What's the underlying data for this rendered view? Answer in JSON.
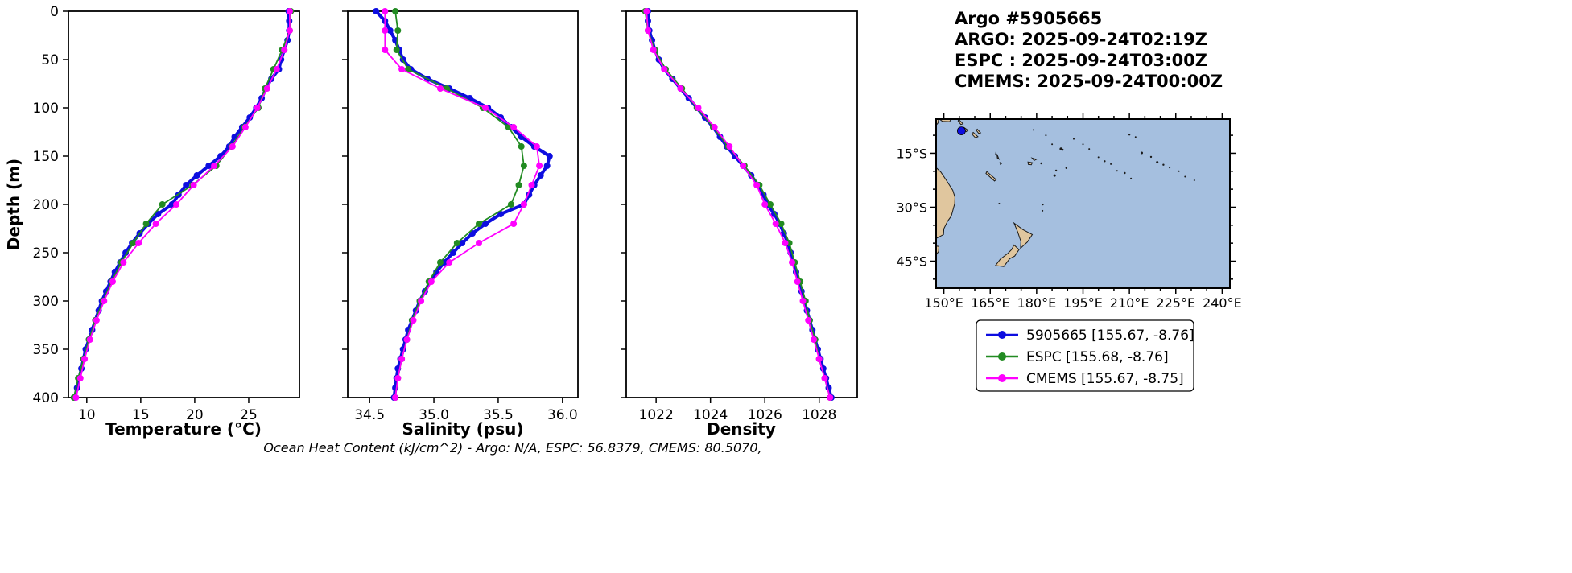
{
  "header": {
    "lines": [
      "Argo #5905665",
      "ARGO: 2025-09-24T02:19Z",
      "ESPC : 2025-09-24T03:00Z",
      "CMEMS: 2025-09-24T00:00Z"
    ]
  },
  "caption": "Ocean Heat Content (kJ/cm^2) - Argo: N/A,  ESPC: 56.8379,  CMEMS: 80.5070,",
  "colors": {
    "argo": "#0d0de0",
    "espc": "#228b22",
    "cmems": "#ff00ff",
    "ocean": "#a5bfdf",
    "land": "#e0c69e",
    "coast": "#1a1a1a"
  },
  "legend": {
    "entries": [
      {
        "label": "5905665 [155.67, -8.76]",
        "color_key": "argo"
      },
      {
        "label": "ESPC [155.68, -8.76]",
        "color_key": "espc"
      },
      {
        "label": "CMEMS [155.67, -8.75]",
        "color_key": "cmems"
      }
    ]
  },
  "map": {
    "extent": {
      "lon_min": 147.5,
      "lon_max": 242.5,
      "lat_min": -52.5,
      "lat_max": -5.5
    },
    "lon_tick_values": [
      150,
      165,
      180,
      195,
      210,
      225,
      240
    ],
    "lon_tick_labels": [
      "150°E",
      "165°E",
      "180°E",
      "195°E",
      "210°E",
      "225°E",
      "240°E"
    ],
    "lat_tick_values": [
      -15,
      -30,
      -45
    ],
    "lat_tick_labels": [
      "15°S",
      "30°S",
      "45°S"
    ],
    "marker": {
      "lon": 155.67,
      "lat": -8.76
    }
  },
  "depth_axis": {
    "label": "Depth (m)",
    "lim": [
      0,
      400
    ],
    "tick_values": [
      0,
      50,
      100,
      150,
      200,
      250,
      300,
      350,
      400
    ],
    "tick_labels": [
      "0",
      "50",
      "100",
      "150",
      "200",
      "250",
      "300",
      "350",
      "400"
    ]
  },
  "depth_grids": {
    "fine": [
      0,
      10,
      20,
      30,
      40,
      50,
      60,
      70,
      80,
      90,
      100,
      110,
      120,
      130,
      140,
      150,
      160,
      170,
      180,
      190,
      200,
      210,
      220,
      230,
      240,
      250,
      260,
      270,
      280,
      290,
      300,
      310,
      320,
      330,
      340,
      350,
      360,
      370,
      380,
      390,
      400
    ],
    "coarse": [
      0,
      20,
      40,
      60,
      80,
      100,
      120,
      140,
      160,
      180,
      200,
      220,
      240,
      260,
      280,
      300,
      320,
      340,
      360,
      380,
      400
    ]
  },
  "chart_data": [
    {
      "id": "temperature",
      "type": "line",
      "xlabel": "Temperature (°C)",
      "ylabel": "Depth (m)",
      "xlim": [
        8.3,
        29.7
      ],
      "ylim": [
        0,
        400
      ],
      "xtick_values": [
        10,
        15,
        20,
        25
      ],
      "xtick_labels": [
        "10",
        "15",
        "20",
        "25"
      ],
      "series": [
        {
          "name": "5905665",
          "color_key": "argo",
          "depth_grid": "fine",
          "line_width": 4,
          "marker_radius": 4,
          "values": [
            28.7,
            28.75,
            28.75,
            28.6,
            28.3,
            28.0,
            27.8,
            27.1,
            26.6,
            26.2,
            25.7,
            25.1,
            24.4,
            23.7,
            23.2,
            22.4,
            21.3,
            20.2,
            19.2,
            18.5,
            17.9,
            16.6,
            15.7,
            14.9,
            14.2,
            13.6,
            13.1,
            12.6,
            12.2,
            11.8,
            11.4,
            11.1,
            10.8,
            10.5,
            10.2,
            9.9,
            9.7,
            9.5,
            9.3,
            9.1,
            8.9
          ]
        },
        {
          "name": "ESPC",
          "color_key": "espc",
          "depth_grid": "coarse",
          "line_width": 1.8,
          "marker_radius": 4,
          "values": [
            28.9,
            28.8,
            28.1,
            27.3,
            26.5,
            25.9,
            24.6,
            23.4,
            22.0,
            19.8,
            17.0,
            15.5,
            14.3,
            13.2,
            12.3,
            11.5,
            10.8,
            10.2,
            9.7,
            9.2,
            8.8
          ]
        },
        {
          "name": "CMEMS",
          "color_key": "cmems",
          "depth_grid": "coarse",
          "line_width": 1.8,
          "marker_radius": 4,
          "values": [
            28.8,
            28.8,
            28.3,
            27.6,
            26.7,
            25.8,
            24.7,
            23.5,
            21.8,
            19.9,
            18.3,
            16.4,
            14.8,
            13.4,
            12.4,
            11.6,
            10.9,
            10.3,
            9.8,
            9.4,
            9.0
          ]
        }
      ]
    },
    {
      "id": "salinity",
      "type": "line",
      "xlabel": "Salinity (psu)",
      "ylabel": "Depth (m)",
      "xlim": [
        34.33,
        36.12
      ],
      "ylim": [
        0,
        400
      ],
      "xtick_values": [
        34.5,
        35.0,
        35.5,
        36.0
      ],
      "xtick_labels": [
        "34.5",
        "35.0",
        "35.5",
        "36.0"
      ],
      "series": [
        {
          "name": "5905665",
          "color_key": "argo",
          "depth_grid": "fine",
          "line_width": 4,
          "marker_radius": 4,
          "values": [
            34.55,
            34.62,
            34.66,
            34.7,
            34.73,
            34.76,
            34.82,
            34.95,
            35.12,
            35.28,
            35.42,
            35.52,
            35.6,
            35.68,
            35.78,
            35.9,
            35.88,
            35.83,
            35.78,
            35.74,
            35.7,
            35.52,
            35.4,
            35.3,
            35.22,
            35.15,
            35.08,
            35.02,
            34.97,
            34.93,
            34.89,
            34.86,
            34.83,
            34.8,
            34.78,
            34.76,
            34.74,
            34.72,
            34.71,
            34.7,
            34.69
          ]
        },
        {
          "name": "ESPC",
          "color_key": "espc",
          "depth_grid": "coarse",
          "line_width": 1.8,
          "marker_radius": 4,
          "values": [
            34.7,
            34.72,
            34.71,
            34.8,
            35.1,
            35.38,
            35.58,
            35.68,
            35.7,
            35.66,
            35.6,
            35.35,
            35.18,
            35.05,
            34.96,
            34.89,
            34.83,
            34.79,
            34.75,
            34.72,
            34.7
          ]
        },
        {
          "name": "CMEMS",
          "color_key": "cmems",
          "depth_grid": "coarse",
          "line_width": 1.8,
          "marker_radius": 4,
          "values": [
            34.62,
            34.62,
            34.62,
            34.75,
            35.05,
            35.4,
            35.62,
            35.8,
            35.82,
            35.76,
            35.7,
            35.62,
            35.35,
            35.12,
            34.98,
            34.9,
            34.84,
            34.79,
            34.75,
            34.72,
            34.7
          ]
        }
      ]
    },
    {
      "id": "density",
      "type": "line",
      "xlabel": "Density",
      "ylabel": "Depth (m)",
      "xlim": [
        1020.9,
        1029.4
      ],
      "ylim": [
        0,
        400
      ],
      "xtick_values": [
        1022,
        1024,
        1026,
        1028
      ],
      "xtick_labels": [
        "1022",
        "1024",
        "1026",
        "1028"
      ],
      "series": [
        {
          "name": "5905665",
          "color_key": "argo",
          "depth_grid": "fine",
          "line_width": 4,
          "marker_radius": 4,
          "values": [
            1021.7,
            1021.7,
            1021.75,
            1021.85,
            1021.95,
            1022.1,
            1022.3,
            1022.6,
            1022.9,
            1023.2,
            1023.5,
            1023.8,
            1024.1,
            1024.35,
            1024.6,
            1024.9,
            1025.2,
            1025.5,
            1025.75,
            1025.95,
            1026.1,
            1026.35,
            1026.55,
            1026.7,
            1026.85,
            1026.95,
            1027.05,
            1027.15,
            1027.25,
            1027.35,
            1027.45,
            1027.55,
            1027.65,
            1027.75,
            1027.85,
            1027.95,
            1028.05,
            1028.15,
            1028.25,
            1028.35,
            1028.45
          ]
        },
        {
          "name": "ESPC",
          "color_key": "espc",
          "depth_grid": "coarse",
          "line_width": 1.8,
          "marker_radius": 4,
          "values": [
            1021.6,
            1021.7,
            1021.95,
            1022.35,
            1022.95,
            1023.5,
            1024.1,
            1024.65,
            1025.25,
            1025.8,
            1026.2,
            1026.6,
            1026.9,
            1027.1,
            1027.3,
            1027.5,
            1027.65,
            1027.85,
            1028.0,
            1028.2,
            1028.4
          ]
        },
        {
          "name": "CMEMS",
          "color_key": "cmems",
          "depth_grid": "coarse",
          "line_width": 1.8,
          "marker_radius": 4,
          "values": [
            1021.65,
            1021.7,
            1021.9,
            1022.3,
            1022.9,
            1023.55,
            1024.15,
            1024.7,
            1025.2,
            1025.7,
            1026.0,
            1026.4,
            1026.75,
            1027.0,
            1027.2,
            1027.4,
            1027.6,
            1027.8,
            1028.0,
            1028.2,
            1028.4
          ]
        }
      ]
    }
  ]
}
